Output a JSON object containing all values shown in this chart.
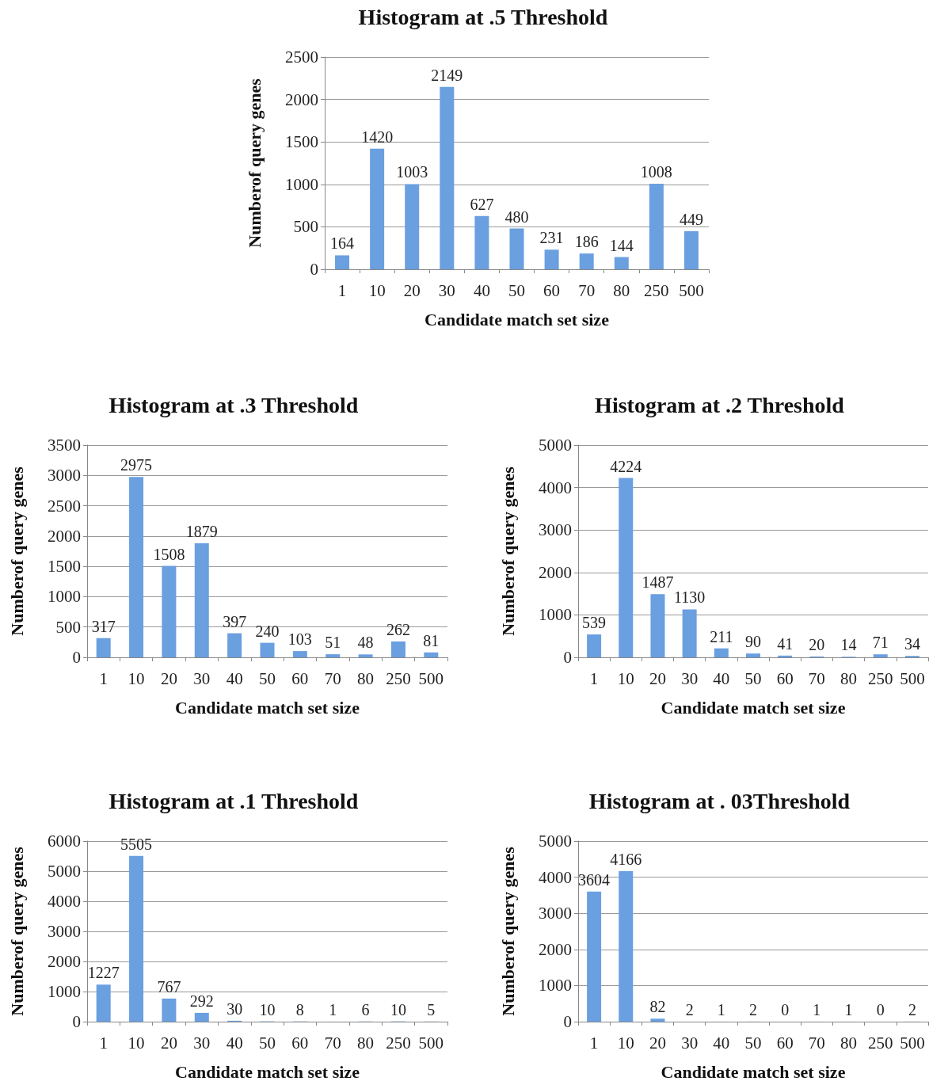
{
  "chart_data": [
    {
      "type": "bar",
      "title": "Histogram at .5 Threshold",
      "xlabel": "Candidate match set size",
      "ylabel": "Numberof query genes",
      "categories": [
        "1",
        "10",
        "20",
        "30",
        "40",
        "50",
        "60",
        "70",
        "80",
        "250",
        "500"
      ],
      "values": [
        164,
        1420,
        1003,
        2149,
        627,
        480,
        231,
        186,
        144,
        1008,
        449
      ],
      "color": "#6a9fe0",
      "ylim": [
        0,
        2500
      ],
      "yticks": [
        0,
        500,
        1000,
        1500,
        2000,
        2500
      ],
      "grid": "y",
      "data_labels": true
    },
    {
      "type": "bar",
      "title": "Histogram at .3 Threshold",
      "xlabel": "Candidate match set size",
      "ylabel": "Numberof query genes",
      "categories": [
        "1",
        "10",
        "20",
        "30",
        "40",
        "50",
        "60",
        "70",
        "80",
        "250",
        "500"
      ],
      "values": [
        317,
        2975,
        1508,
        1879,
        397,
        240,
        103,
        51,
        48,
        262,
        81
      ],
      "color": "#6a9fe0",
      "ylim": [
        0,
        3500
      ],
      "yticks": [
        0,
        500,
        1000,
        1500,
        2000,
        2500,
        3000,
        3500
      ],
      "grid": "y",
      "data_labels": true
    },
    {
      "type": "bar",
      "title": "Histogram at .2 Threshold",
      "xlabel": "Candidate match set size",
      "ylabel": "Numberof query genes",
      "categories": [
        "1",
        "10",
        "20",
        "30",
        "40",
        "50",
        "60",
        "70",
        "80",
        "250",
        "500"
      ],
      "values": [
        539,
        4224,
        1487,
        1130,
        211,
        90,
        41,
        20,
        14,
        71,
        34
      ],
      "color": "#6a9fe0",
      "ylim": [
        0,
        5000
      ],
      "yticks": [
        0,
        1000,
        2000,
        3000,
        4000,
        5000
      ],
      "grid": "y",
      "data_labels": true
    },
    {
      "type": "bar",
      "title": "Histogram at .1 Threshold",
      "xlabel": "Candidate match set size",
      "ylabel": "Numberof query genes",
      "categories": [
        "1",
        "10",
        "20",
        "30",
        "40",
        "50",
        "60",
        "70",
        "80",
        "250",
        "500"
      ],
      "values": [
        1227,
        5505,
        767,
        292,
        30,
        10,
        8,
        1,
        6,
        10,
        5
      ],
      "color": "#6a9fe0",
      "ylim": [
        0,
        6000
      ],
      "yticks": [
        0,
        1000,
        2000,
        3000,
        4000,
        5000,
        6000
      ],
      "grid": "y",
      "data_labels": true
    },
    {
      "type": "bar",
      "title": "Histogram at . 03Threshold",
      "xlabel": "Candidate match set size",
      "ylabel": "Numberof query genes",
      "categories": [
        "1",
        "10",
        "20",
        "30",
        "40",
        "50",
        "60",
        "70",
        "80",
        "250",
        "500"
      ],
      "values": [
        3604,
        4166,
        82,
        2,
        1,
        2,
        0,
        1,
        1,
        0,
        2
      ],
      "color": "#6a9fe0",
      "ylim": [
        0,
        5000
      ],
      "yticks": [
        0,
        1000,
        2000,
        3000,
        4000,
        5000
      ],
      "grid": "y",
      "data_labels": true
    }
  ]
}
